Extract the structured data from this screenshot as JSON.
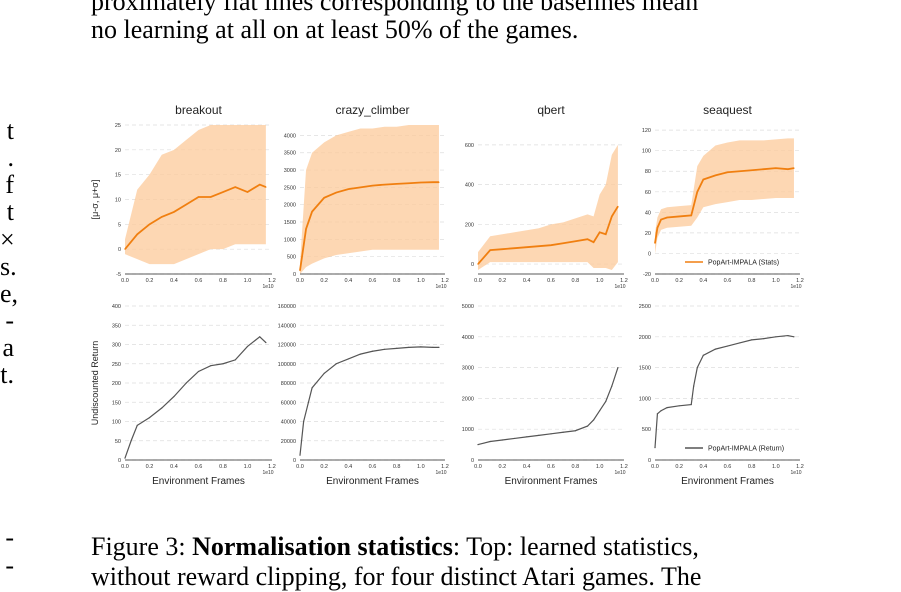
{
  "body_text": {
    "line1": "proximately flat lines corresponding to the baselines mean",
    "line2": "no learning at all on at least 50% of the games."
  },
  "left_edge_fragments": [
    "t",
    ".",
    "f",
    "t",
    "×",
    "s.",
    "e,",
    "-",
    "a",
    "t."
  ],
  "left_edge_bottom": [
    "-",
    "-"
  ],
  "caption": {
    "label": "Figure 3: ",
    "bold": "Normalisation statistics",
    "rest_line1": ": Top: learned statistics,",
    "line2": "without reward clipping, for four distinct Atari games. The"
  },
  "colors": {
    "orange": "#f07f10",
    "band": "#fcc99a",
    "gray": "#555555"
  },
  "chart_data": [
    {
      "type": "area",
      "title": "breakout",
      "ylabel": "[μ-σ, μ+σ]",
      "ylim": [
        -5,
        25
      ],
      "yticks": [
        -5,
        0,
        5,
        10,
        15,
        20,
        25
      ],
      "xlim": [
        0,
        1.2
      ],
      "x": [
        0,
        0.1,
        0.2,
        0.3,
        0.4,
        0.5,
        0.6,
        0.7,
        0.8,
        0.9,
        1.0,
        1.1,
        1.15
      ],
      "mean": [
        0,
        3,
        5,
        6.5,
        7.5,
        9,
        10.5,
        10.5,
        11.5,
        12.5,
        11.5,
        13,
        12.5
      ],
      "upper": [
        2,
        12,
        15,
        19,
        20,
        22,
        24,
        25,
        25,
        25,
        25,
        25,
        25
      ],
      "lower": [
        -1,
        -2,
        -3,
        -3,
        -3,
        -2,
        -1,
        0,
        0,
        1,
        1,
        1,
        1
      ]
    },
    {
      "type": "area",
      "title": "crazy_climber",
      "ylim": [
        0,
        4300
      ],
      "yticks": [
        0,
        500,
        1000,
        1500,
        2000,
        2500,
        3000,
        3500,
        4000
      ],
      "xlim": [
        0,
        1.2
      ],
      "x": [
        0,
        0.05,
        0.1,
        0.2,
        0.3,
        0.4,
        0.5,
        0.6,
        0.7,
        0.8,
        0.9,
        1.0,
        1.1,
        1.15
      ],
      "mean": [
        100,
        1300,
        1800,
        2200,
        2350,
        2450,
        2500,
        2550,
        2580,
        2600,
        2620,
        2640,
        2650,
        2650
      ],
      "upper": [
        300,
        3000,
        3500,
        3800,
        4000,
        4100,
        4200,
        4200,
        4250,
        4250,
        4300,
        4300,
        4300,
        4300
      ],
      "lower": [
        0,
        200,
        300,
        450,
        550,
        600,
        650,
        700,
        700,
        700,
        700,
        700,
        700,
        700
      ]
    },
    {
      "type": "area",
      "title": "qbert",
      "ylim": [
        -50,
        700
      ],
      "yticks": [
        0,
        200,
        400,
        600
      ],
      "xlim": [
        0,
        1.2
      ],
      "x": [
        0,
        0.1,
        0.2,
        0.3,
        0.4,
        0.5,
        0.6,
        0.7,
        0.8,
        0.9,
        0.95,
        1.0,
        1.05,
        1.1,
        1.15
      ],
      "mean": [
        0,
        70,
        75,
        80,
        85,
        90,
        95,
        105,
        115,
        125,
        110,
        160,
        150,
        240,
        290
      ],
      "upper": [
        60,
        140,
        150,
        160,
        170,
        180,
        200,
        210,
        230,
        250,
        240,
        350,
        400,
        550,
        600
      ],
      "lower": [
        -30,
        10,
        10,
        10,
        10,
        10,
        10,
        10,
        10,
        10,
        -20,
        -20,
        -20,
        -30,
        10
      ]
    },
    {
      "type": "area",
      "title": "seaquest",
      "ylim": [
        -20,
        125
      ],
      "yticks": [
        -20,
        0,
        20,
        40,
        60,
        80,
        100,
        120
      ],
      "xlim": [
        0,
        1.2
      ],
      "legend": "PopArt-IMPALA (Stats)",
      "x": [
        0,
        0.02,
        0.05,
        0.1,
        0.2,
        0.3,
        0.35,
        0.4,
        0.5,
        0.6,
        0.7,
        0.8,
        0.9,
        1.0,
        1.1,
        1.15
      ],
      "mean": [
        10,
        25,
        33,
        35,
        36,
        37,
        60,
        72,
        76,
        79,
        80,
        81,
        82,
        83,
        82,
        83
      ],
      "upper": [
        20,
        35,
        43,
        45,
        46,
        47,
        85,
        95,
        105,
        108,
        110,
        110,
        110,
        111,
        112,
        112
      ],
      "lower": [
        0,
        15,
        23,
        25,
        26,
        27,
        35,
        45,
        48,
        50,
        52,
        52,
        53,
        54,
        54,
        54
      ]
    },
    {
      "type": "line",
      "ylabel": "Undiscounted Return",
      "xlabel": "Environment Frames",
      "ylim": [
        0,
        400
      ],
      "yticks": [
        0,
        50,
        100,
        150,
        200,
        250,
        300,
        350,
        400
      ],
      "xlim": [
        0,
        1.2
      ],
      "x": [
        0,
        0.05,
        0.1,
        0.2,
        0.3,
        0.4,
        0.5,
        0.6,
        0.7,
        0.8,
        0.9,
        1.0,
        1.1,
        1.15
      ],
      "y": [
        5,
        50,
        90,
        110,
        135,
        165,
        200,
        230,
        245,
        250,
        260,
        295,
        320,
        305
      ]
    },
    {
      "type": "line",
      "xlabel": "Environment Frames",
      "ylim": [
        0,
        160000
      ],
      "yticks": [
        0,
        20000,
        40000,
        60000,
        80000,
        100000,
        120000,
        140000,
        160000
      ],
      "xlim": [
        0,
        1.2
      ],
      "x": [
        0,
        0.03,
        0.07,
        0.1,
        0.2,
        0.3,
        0.4,
        0.5,
        0.6,
        0.7,
        0.8,
        0.9,
        1.0,
        1.1,
        1.15
      ],
      "y": [
        5000,
        40000,
        60000,
        75000,
        90000,
        100000,
        105000,
        110000,
        113000,
        115000,
        116000,
        117000,
        117500,
        117000,
        117000
      ]
    },
    {
      "type": "line",
      "xlabel": "Environment Frames",
      "ylim": [
        0,
        5000
      ],
      "yticks": [
        0,
        1000,
        2000,
        3000,
        4000,
        5000
      ],
      "xlim": [
        0,
        1.2
      ],
      "x": [
        0,
        0.05,
        0.1,
        0.2,
        0.3,
        0.4,
        0.5,
        0.6,
        0.7,
        0.8,
        0.9,
        0.95,
        1.0,
        1.05,
        1.1,
        1.15
      ],
      "y": [
        500,
        550,
        600,
        650,
        700,
        750,
        800,
        850,
        900,
        950,
        1100,
        1300,
        1600,
        1900,
        2400,
        3000
      ]
    },
    {
      "type": "line",
      "xlabel": "Environment Frames",
      "ylim": [
        0,
        2500
      ],
      "yticks": [
        0,
        500,
        1000,
        1500,
        2000,
        2500
      ],
      "xlim": [
        0,
        1.2
      ],
      "legend": "PopArt-IMPALA (Return)",
      "x": [
        0,
        0.02,
        0.05,
        0.1,
        0.2,
        0.3,
        0.32,
        0.35,
        0.4,
        0.5,
        0.6,
        0.7,
        0.8,
        0.9,
        1.0,
        1.1,
        1.15
      ],
      "y": [
        200,
        750,
        800,
        850,
        880,
        900,
        1200,
        1500,
        1700,
        1800,
        1850,
        1900,
        1950,
        1970,
        2000,
        2020,
        2000
      ]
    }
  ],
  "xtick_labels": [
    "0.0",
    "0.2",
    "0.4",
    "0.6",
    "0.8",
    "1.0",
    "1.2"
  ],
  "x_exponent": "1e10"
}
